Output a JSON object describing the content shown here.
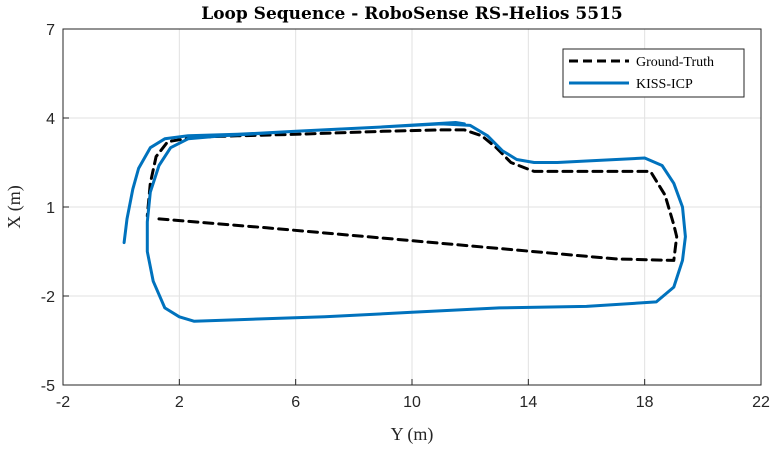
{
  "chart_data": {
    "type": "line",
    "title": "Loop Sequence - RoboSense RS-Helios 5515",
    "xlabel": "Y (m)",
    "ylabel": "X (m)",
    "xlim": [
      -2,
      22
    ],
    "ylim": [
      -5,
      7
    ],
    "xticks": [
      -2,
      2,
      6,
      10,
      14,
      18,
      22
    ],
    "yticks": [
      -5,
      -2,
      1,
      4,
      7
    ],
    "xtick_labels": [
      "-2",
      "2",
      "6",
      "10",
      "14",
      "18",
      "22"
    ],
    "ytick_labels": [
      "-5",
      "-2",
      "1",
      "4",
      "7"
    ],
    "grid": true,
    "legend_position": "top-right",
    "series": [
      {
        "name": "Ground-Truth",
        "color": "#000000",
        "style": "dashed",
        "x": [
          1.3,
          5,
          9,
          13,
          17,
          19.0,
          19.1,
          19.0,
          18.7,
          18.2,
          16,
          14.2,
          13.4,
          12.9,
          12.4,
          11.8,
          11,
          9,
          6,
          4,
          2.5,
          1.6,
          1.2,
          1.0,
          0.9
        ],
        "y": [
          0.6,
          0.3,
          -0.05,
          -0.4,
          -0.75,
          -0.8,
          0,
          0.4,
          1.4,
          2.2,
          2.2,
          2.2,
          2.5,
          3.0,
          3.4,
          3.6,
          3.6,
          3.55,
          3.45,
          3.4,
          3.35,
          3.2,
          2.7,
          1.8,
          0.7
        ]
      },
      {
        "name": "KISS-ICP",
        "color": "#0072BD",
        "style": "solid",
        "x": [
          0.1,
          0.2,
          0.4,
          0.6,
          1.0,
          1.5,
          2.3,
          4,
          6,
          9,
          11,
          12,
          12.6,
          13.1,
          13.6,
          14.2,
          15,
          16,
          18,
          18.6,
          19.0,
          19.3,
          19.4,
          19.3,
          19.0,
          18.4,
          16,
          13,
          10,
          7,
          4,
          2.5,
          2.0,
          1.5,
          1.1,
          0.9,
          0.9,
          1.0,
          1.3,
          1.7,
          2.3,
          3.5,
          6,
          9,
          11.5,
          11.8
        ],
        "y": [
          -0.2,
          0.6,
          1.6,
          2.3,
          3.0,
          3.3,
          3.4,
          3.45,
          3.55,
          3.7,
          3.8,
          3.75,
          3.4,
          2.9,
          2.6,
          2.5,
          2.5,
          2.55,
          2.65,
          2.4,
          1.8,
          1.0,
          0.0,
          -0.8,
          -1.7,
          -2.2,
          -2.35,
          -2.4,
          -2.55,
          -2.7,
          -2.8,
          -2.85,
          -2.7,
          -2.4,
          -1.5,
          -0.5,
          0.5,
          1.5,
          2.4,
          3.0,
          3.3,
          3.4,
          3.55,
          3.7,
          3.85,
          3.8
        ]
      }
    ]
  }
}
